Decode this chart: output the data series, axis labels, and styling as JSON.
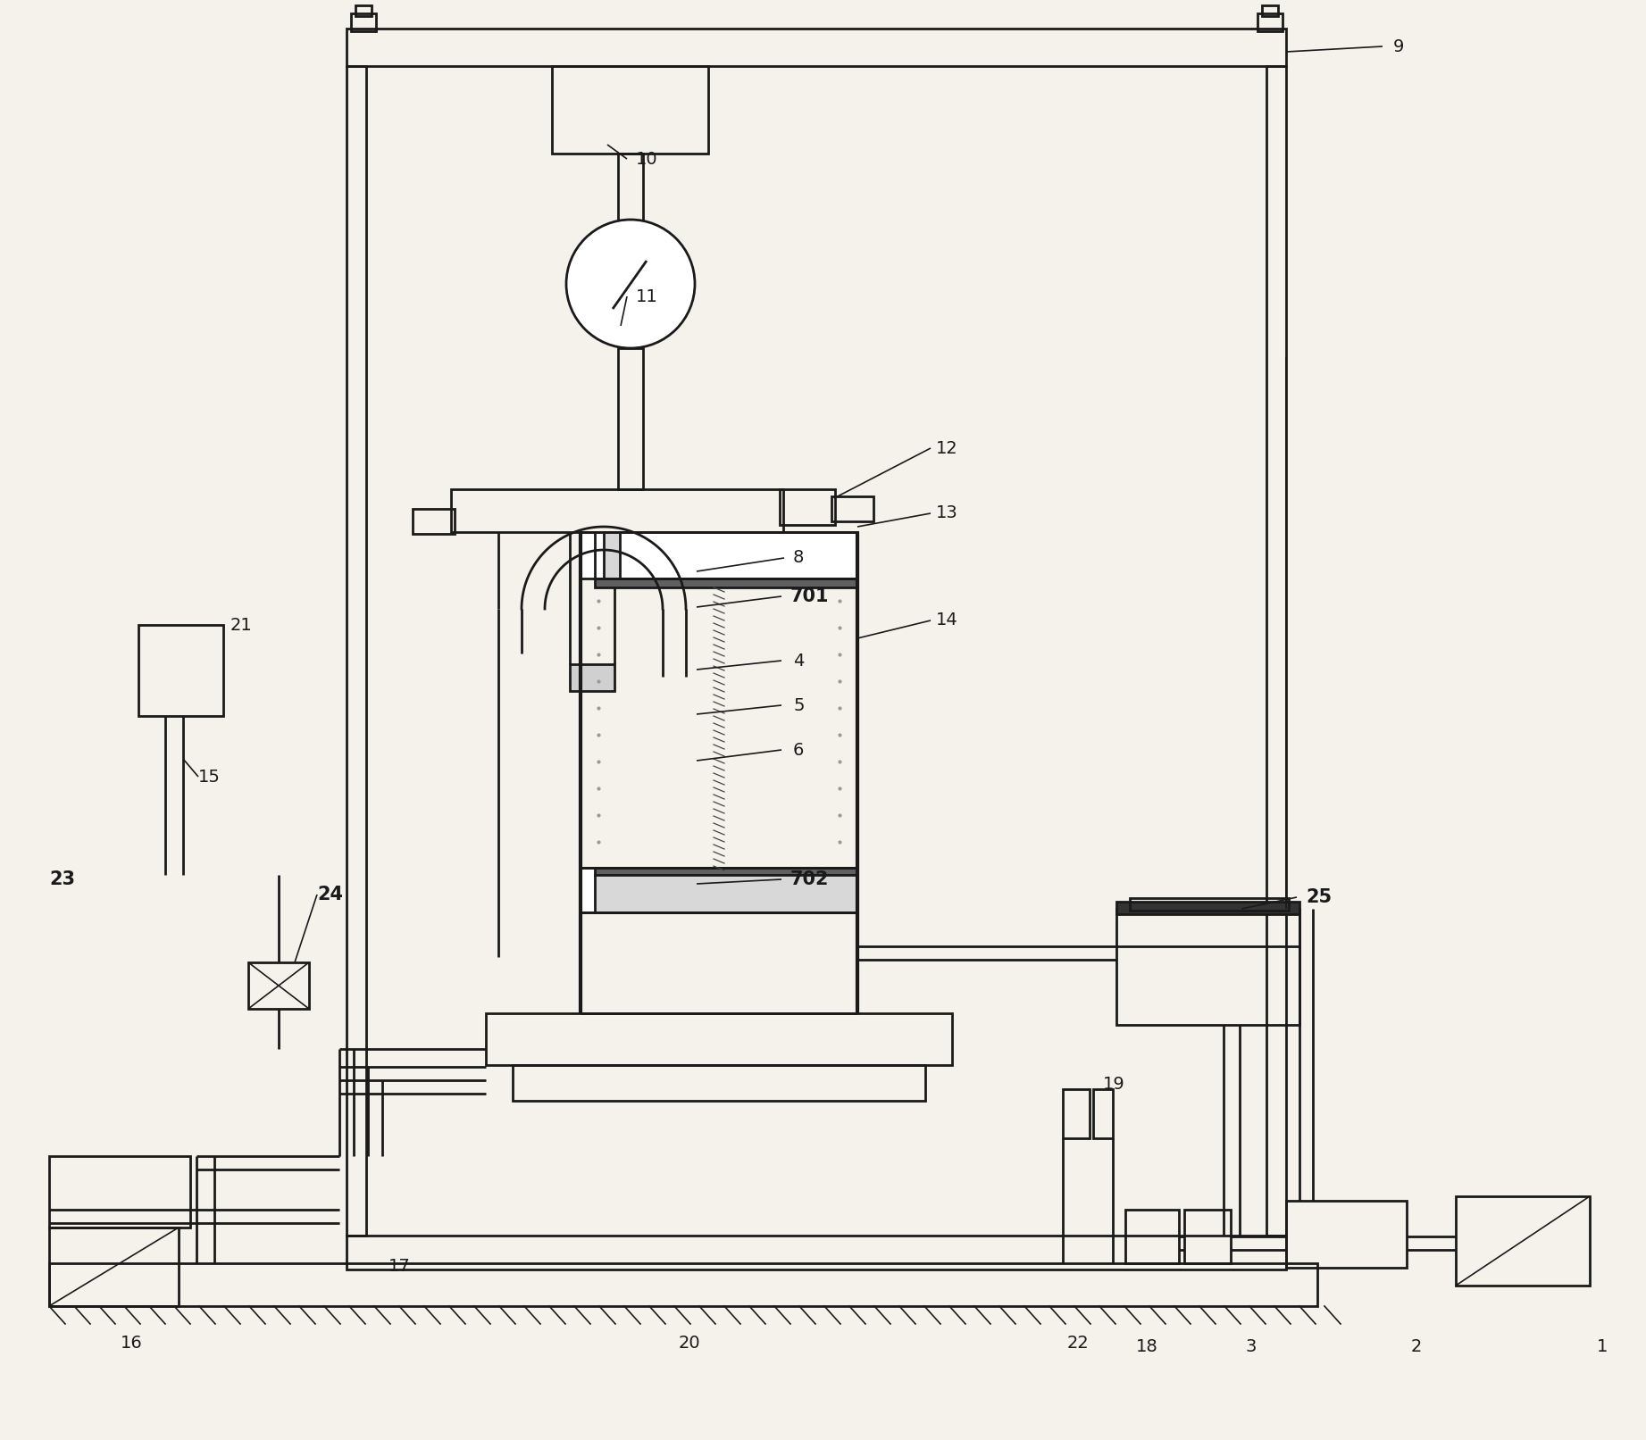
{
  "bg": "#f5f2ec",
  "lc": "#1a1a1a",
  "lw": 2.0,
  "thin": 1.2,
  "thick": 3.0
}
